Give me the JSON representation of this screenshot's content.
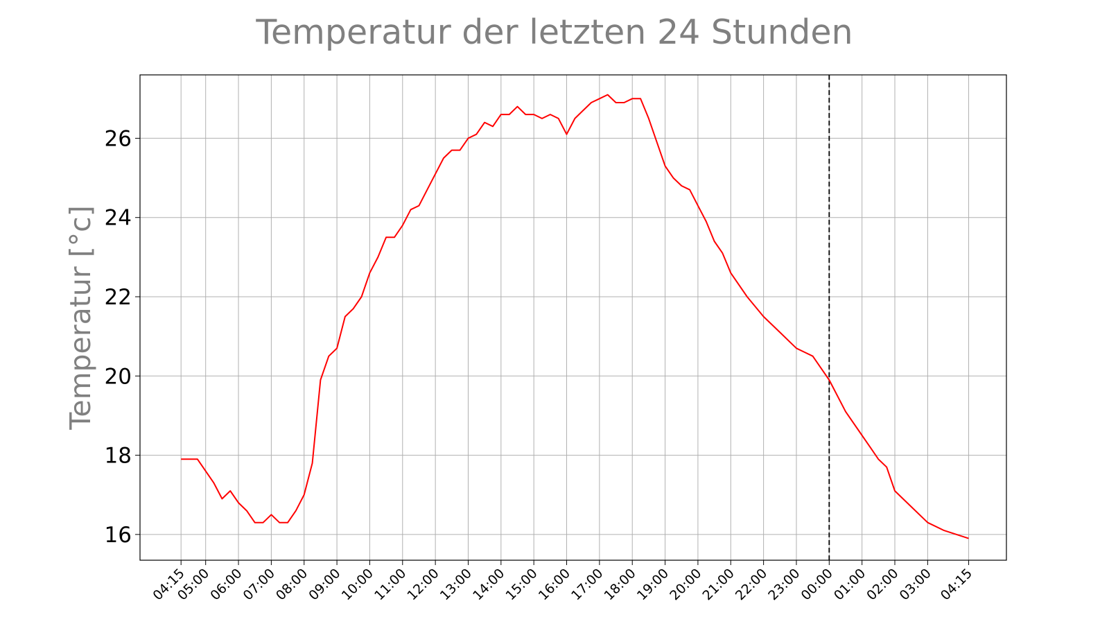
{
  "chart_data": {
    "type": "line",
    "title": "Temperatur der letzten 24 Stunden",
    "ylabel": "Temperatur [°c]",
    "xlabel": "",
    "ylim": [
      15.35,
      27.6
    ],
    "yticks": [
      16,
      18,
      20,
      22,
      24,
      26
    ],
    "xtick_labels": [
      "04:15",
      "05:00",
      "06:00",
      "07:00",
      "08:00",
      "09:00",
      "10:00",
      "11:00",
      "12:00",
      "13:00",
      "14:00",
      "15:00",
      "16:00",
      "17:00",
      "18:00",
      "19:00",
      "20:00",
      "21:00",
      "22:00",
      "23:00",
      "00:00",
      "01:00",
      "02:00",
      "03:00",
      "04:15"
    ],
    "xtick_hours": [
      4.25,
      5,
      6,
      7,
      8,
      9,
      10,
      11,
      12,
      13,
      14,
      15,
      16,
      17,
      18,
      19,
      20,
      21,
      22,
      23,
      24,
      25,
      26,
      27,
      28.25
    ],
    "xlim": [
      3.0,
      29.4
    ],
    "grid": true,
    "marker_line": {
      "x": 24,
      "style": "dashed",
      "color": "#000000"
    },
    "line_color": "#ff0000",
    "series": [
      {
        "x": [
          4.25,
          4.5,
          4.75,
          5.0,
          5.25,
          5.5,
          5.75,
          6.0,
          6.25,
          6.5,
          6.75,
          7.0,
          7.25,
          7.5,
          7.75,
          8.0,
          8.25,
          8.5,
          8.75,
          9.0,
          9.25,
          9.5,
          9.75,
          10.0,
          10.25,
          10.5,
          10.75,
          11.0,
          11.25,
          11.5,
          11.75,
          12.0,
          12.25,
          12.5,
          12.75,
          13.0,
          13.25,
          13.5,
          13.75,
          14.0,
          14.25,
          14.5,
          14.75,
          15.0,
          15.25,
          15.5,
          15.75,
          16.0,
          16.25,
          16.5,
          16.75,
          17.0,
          17.25,
          17.5,
          17.75,
          18.0,
          18.25,
          18.5,
          18.75,
          19.0,
          19.25,
          19.5,
          19.75,
          20.0,
          20.25,
          20.5,
          20.75,
          21.0,
          21.5,
          22.0,
          22.5,
          23.0,
          23.25,
          23.5,
          23.75,
          24.0,
          24.5,
          25.0,
          25.25,
          25.5,
          25.75,
          26.0,
          26.5,
          27.0,
          27.5,
          28.25
        ],
        "values": [
          17.9,
          17.9,
          17.9,
          17.6,
          17.3,
          16.9,
          17.1,
          16.8,
          16.6,
          16.3,
          16.3,
          16.5,
          16.3,
          16.3,
          16.6,
          17.0,
          17.8,
          19.9,
          20.5,
          20.7,
          21.5,
          21.7,
          22.0,
          22.6,
          23.0,
          23.5,
          23.5,
          23.8,
          24.2,
          24.3,
          24.7,
          25.1,
          25.5,
          25.7,
          25.7,
          26.0,
          26.1,
          26.4,
          26.3,
          26.6,
          26.6,
          26.8,
          26.6,
          26.6,
          26.5,
          26.6,
          26.5,
          26.1,
          26.5,
          26.7,
          26.9,
          27.0,
          27.1,
          26.9,
          26.9,
          27.0,
          27.0,
          26.5,
          25.9,
          25.3,
          25.0,
          24.8,
          24.7,
          24.3,
          23.9,
          23.4,
          23.1,
          22.6,
          22.0,
          21.5,
          21.1,
          20.7,
          20.6,
          20.5,
          20.2,
          19.9,
          19.1,
          18.5,
          18.2,
          17.9,
          17.7,
          17.1,
          16.7,
          16.3,
          16.1,
          15.9
        ]
      }
    ]
  }
}
